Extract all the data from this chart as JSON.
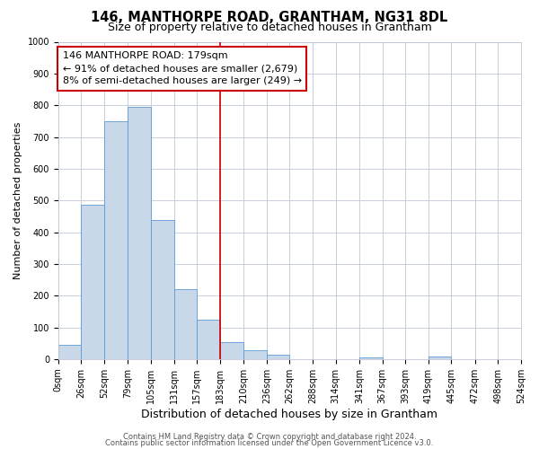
{
  "title": "146, MANTHORPE ROAD, GRANTHAM, NG31 8DL",
  "subtitle": "Size of property relative to detached houses in Grantham",
  "xlabel": "Distribution of detached houses by size in Grantham",
  "ylabel": "Number of detached properties",
  "bin_edges": [
    0,
    26,
    52,
    79,
    105,
    131,
    157,
    183,
    210,
    236,
    262,
    288,
    314,
    341,
    367,
    393,
    419,
    445,
    472,
    498,
    524
  ],
  "counts": [
    44,
    485,
    750,
    795,
    438,
    220,
    125,
    52,
    28,
    15,
    0,
    0,
    0,
    5,
    0,
    0,
    8,
    0,
    0,
    0
  ],
  "bar_color": "#c8d8e8",
  "bar_edge_color": "#5b9bd5",
  "property_line_x": 183,
  "property_line_color": "#cc0000",
  "annotation_line1": "146 MANTHORPE ROAD: 179sqm",
  "annotation_line2": "← 91% of detached houses are smaller (2,679)",
  "annotation_line3": "8% of semi-detached houses are larger (249) →",
  "annotation_box_color": "#cc0000",
  "ylim": [
    0,
    1000
  ],
  "yticks": [
    0,
    100,
    200,
    300,
    400,
    500,
    600,
    700,
    800,
    900,
    1000
  ],
  "xtick_labels": [
    "0sqm",
    "26sqm",
    "52sqm",
    "79sqm",
    "105sqm",
    "131sqm",
    "157sqm",
    "183sqm",
    "210sqm",
    "236sqm",
    "262sqm",
    "288sqm",
    "314sqm",
    "341sqm",
    "367sqm",
    "393sqm",
    "419sqm",
    "445sqm",
    "472sqm",
    "498sqm",
    "524sqm"
  ],
  "footer1": "Contains HM Land Registry data © Crown copyright and database right 2024.",
  "footer2": "Contains public sector information licensed under the Open Government Licence v3.0.",
  "background_color": "#ffffff",
  "grid_color": "#c0c8d8",
  "title_fontsize": 10.5,
  "subtitle_fontsize": 9,
  "xlabel_fontsize": 9,
  "ylabel_fontsize": 8,
  "tick_fontsize": 7,
  "annotation_fontsize": 8,
  "footer_fontsize": 6
}
